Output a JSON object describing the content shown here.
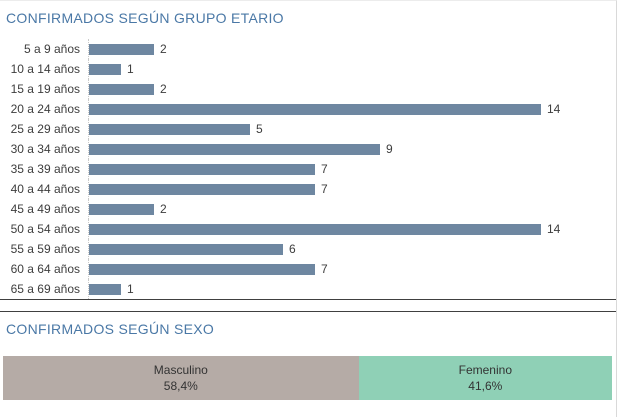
{
  "sections": {
    "age": {
      "title": "CONFIRMADOS SEGÚN GRUPO ETARIO"
    },
    "sex": {
      "title": "CONFIRMADOS SEGÚN SEXO"
    }
  },
  "chart_data": [
    {
      "type": "bar",
      "orientation": "horizontal",
      "title": "CONFIRMADOS SEGÚN GRUPO ETARIO",
      "categories": [
        "5 a 9 años",
        "10 a 14 años",
        "15 a 19 años",
        "20 a 24 años",
        "25 a 29 años",
        "30 a 34 años",
        "35 a 39 años",
        "40 a 44 años",
        "45 a 49 años",
        "50 a 54 años",
        "55 a 59 años",
        "60 a 64 años",
        "65 a 69 años"
      ],
      "values": [
        2,
        1,
        2,
        14,
        5,
        9,
        7,
        7,
        2,
        14,
        6,
        7,
        1
      ],
      "xlim": [
        0,
        14
      ],
      "value_labels_shown": true,
      "grid": false,
      "bar_color": "#6e87a1"
    },
    {
      "type": "bar",
      "subtype": "stacked-100pct",
      "title": "CONFIRMADOS SEGÚN SEXO",
      "series": [
        {
          "name": "Masculino",
          "value_pct": 58.4,
          "pct_label": "58,4%",
          "color": "#b5aba6"
        },
        {
          "name": "Femenino",
          "value_pct": 41.6,
          "pct_label": "41,6%",
          "color": "#8fd0b6"
        }
      ]
    }
  ],
  "colors": {
    "title_blue": "#4a78a6",
    "age_bar": "#6e87a1",
    "masculino": "#b5aba6",
    "femenino": "#8fd0b6",
    "divider": "#404040",
    "text": "#3d3d3d"
  }
}
